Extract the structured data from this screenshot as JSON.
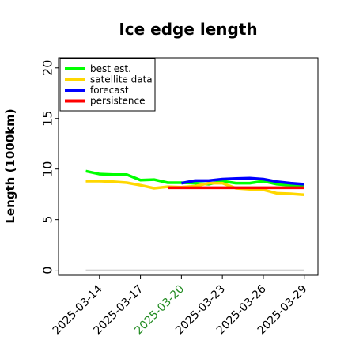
{
  "chart_data": {
    "type": "line",
    "title": "Ice edge length",
    "xlabel": "",
    "ylabel": "Length (1000km)",
    "x_type": "date",
    "xlim": [
      "2025-03-11",
      "2025-03-30"
    ],
    "ylim": [
      -0.5,
      21
    ],
    "yticks": [
      0,
      5,
      10,
      15,
      20
    ],
    "xticks": [
      "2025-03-14",
      "2025-03-17",
      "2025-03-20",
      "2025-03-23",
      "2025-03-26",
      "2025-03-29"
    ],
    "xtick_colors": [
      "#000000",
      "#000000",
      "#228b22",
      "#000000",
      "#000000",
      "#000000"
    ],
    "grid": false,
    "legend_position": "upper-left",
    "series": [
      {
        "name": "best est.",
        "color": "#00ff00",
        "points": [
          [
            "2025-03-13",
            9.8
          ],
          [
            "2025-03-14",
            9.5
          ],
          [
            "2025-03-15",
            9.45
          ],
          [
            "2025-03-16",
            9.45
          ],
          [
            "2025-03-17",
            8.9
          ],
          [
            "2025-03-18",
            8.95
          ],
          [
            "2025-03-19",
            8.65
          ],
          [
            "2025-03-20",
            8.65
          ],
          [
            "2025-03-21",
            8.6
          ],
          [
            "2025-03-22",
            8.5
          ],
          [
            "2025-03-23",
            8.8
          ],
          [
            "2025-03-24",
            8.6
          ],
          [
            "2025-03-25",
            8.6
          ],
          [
            "2025-03-26",
            8.8
          ],
          [
            "2025-03-27",
            8.5
          ],
          [
            "2025-03-28",
            8.4
          ],
          [
            "2025-03-29",
            8.3
          ]
        ]
      },
      {
        "name": "satellite data",
        "color": "#ffd700",
        "points": [
          [
            "2025-03-13",
            8.8
          ],
          [
            "2025-03-14",
            8.8
          ],
          [
            "2025-03-15",
            8.75
          ],
          [
            "2025-03-16",
            8.65
          ],
          [
            "2025-03-17",
            8.4
          ],
          [
            "2025-03-18",
            8.1
          ],
          [
            "2025-03-19",
            8.25
          ],
          [
            "2025-03-20",
            8.2
          ],
          [
            "2025-03-21",
            8.3
          ],
          [
            "2025-03-22",
            8.6
          ],
          [
            "2025-03-23",
            8.6
          ],
          [
            "2025-03-24",
            8.1
          ],
          [
            "2025-03-25",
            8.0
          ],
          [
            "2025-03-26",
            7.95
          ],
          [
            "2025-03-27",
            7.6
          ],
          [
            "2025-03-28",
            7.55
          ],
          [
            "2025-03-29",
            7.45
          ]
        ]
      },
      {
        "name": "forecast",
        "color": "#0000ff",
        "points": [
          [
            "2025-03-20",
            8.6
          ],
          [
            "2025-03-21",
            8.85
          ],
          [
            "2025-03-22",
            8.85
          ],
          [
            "2025-03-23",
            9.0
          ],
          [
            "2025-03-24",
            9.05
          ],
          [
            "2025-03-25",
            9.1
          ],
          [
            "2025-03-26",
            9.0
          ],
          [
            "2025-03-27",
            8.75
          ],
          [
            "2025-03-28",
            8.6
          ],
          [
            "2025-03-29",
            8.5
          ]
        ]
      },
      {
        "name": "persistence",
        "color": "#ff0000",
        "points": [
          [
            "2025-03-19",
            8.15
          ],
          [
            "2025-03-29",
            8.15
          ]
        ]
      }
    ],
    "reference_lines": [
      {
        "color": "#808080",
        "points": [
          [
            "2025-03-13",
            0
          ],
          [
            "2025-03-29",
            0
          ]
        ]
      }
    ]
  }
}
